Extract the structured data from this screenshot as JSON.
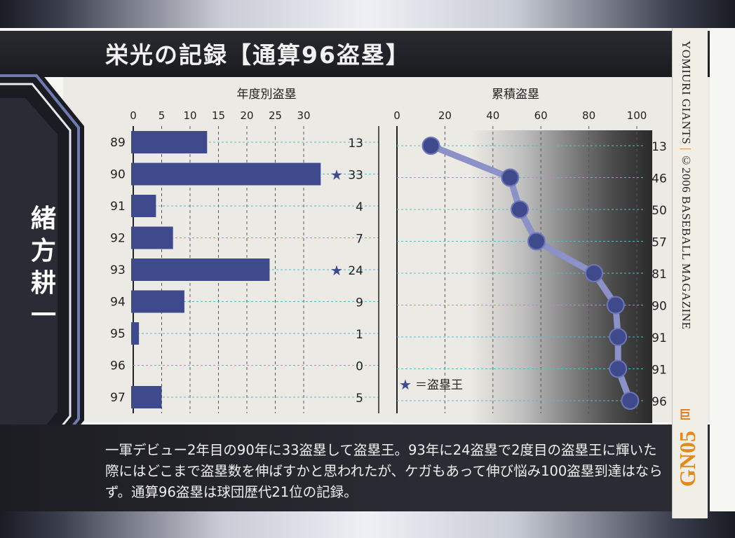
{
  "title": "栄光の記録【通算96盗塁】",
  "player_name": "緒方耕一",
  "card_code": "GN05",
  "vertical_caption": {
    "team": "YOMIURI GIANTS",
    "copyright": "©2006 BASEBALL MAGAZINE"
  },
  "team_mark": "巨",
  "description": "一軍デビュー2年目の90年に33盗塁して盗塁王。93年に24盗塁で2度目の盗塁王に輝いた際にはどこまで盗塁数を伸ばすかと思われたが、ケガもあって伸び悩み100盗塁到達はならず。通算96盗塁は球団歴代21位の記録。",
  "legend": "★＝盗塁王",
  "colors": {
    "bar": "#3f4a8c",
    "line": "#8c91c8",
    "marker": "#3f4a8c",
    "grid": "#5bb8c8"
  },
  "chart_data": [
    {
      "type": "bar",
      "orientation": "horizontal",
      "title": "年度別盗塁",
      "categories": [
        "89",
        "90",
        "91",
        "92",
        "93",
        "94",
        "95",
        "96",
        "97"
      ],
      "values": [
        13,
        33,
        4,
        7,
        24,
        9,
        1,
        0,
        5
      ],
      "value_labels": [
        "13",
        "33",
        "4",
        "7",
        "24",
        "9",
        "1",
        "0",
        "5"
      ],
      "stars": [
        false,
        true,
        false,
        false,
        true,
        false,
        false,
        false,
        false
      ],
      "xlim": [
        0,
        33
      ],
      "xticks": [
        "0",
        "5",
        "10",
        "15",
        "20",
        "25",
        "30"
      ],
      "grid": true
    },
    {
      "type": "line",
      "title": "累積盗塁",
      "categories": [
        "89",
        "90",
        "91",
        "92",
        "93",
        "94",
        "95",
        "96",
        "97"
      ],
      "values": [
        13,
        46,
        50,
        57,
        81,
        90,
        91,
        91,
        96
      ],
      "value_labels": [
        "13",
        "46",
        "50",
        "57",
        "81",
        "90",
        "91",
        "91",
        "96"
      ],
      "xlim": [
        0,
        100
      ],
      "xticks": [
        "0",
        "20",
        "40",
        "60",
        "80",
        "100"
      ],
      "grid": true
    }
  ]
}
